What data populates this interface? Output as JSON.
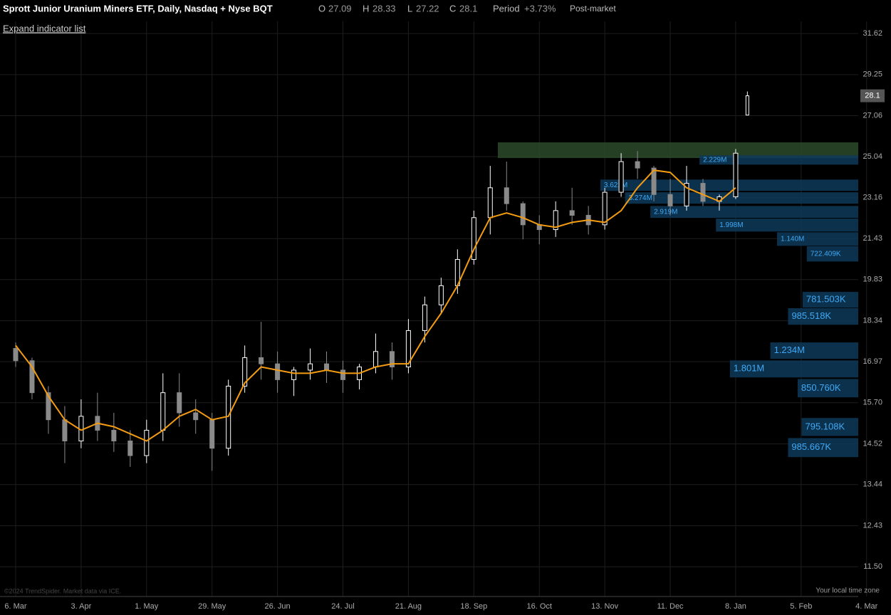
{
  "header": {
    "title": "Sprott Junior Uranium Miners ETF, Daily, Nasdaq + Nyse BQT",
    "ohlc": [
      {
        "label": "O",
        "value": 27.09
      },
      {
        "label": "H",
        "value": 28.33
      },
      {
        "label": "L",
        "value": 27.22
      },
      {
        "label": "C",
        "value": 28.1
      }
    ],
    "period": {
      "label": "Period",
      "value": 3.73,
      "value_label": "+3.73%"
    },
    "session": "Post-market",
    "expand": "Expand indicator list"
  },
  "chart_data": {
    "type": "candlestick",
    "log_scale": true,
    "grid": true,
    "xlim": [
      -6.7,
      358.9
    ],
    "ylim": [
      10.87,
      32.36
    ],
    "xticks": [
      {
        "value": 0,
        "label": "6. Mar"
      },
      {
        "value": 28,
        "label": "3. Apr"
      },
      {
        "value": 56,
        "label": "1. May"
      },
      {
        "value": 84,
        "label": "29. May"
      },
      {
        "value": 112,
        "label": "26. Jun"
      },
      {
        "value": 140,
        "label": "24. Jul"
      },
      {
        "value": 168,
        "label": "21. Aug"
      },
      {
        "value": 196,
        "label": "18. Sep"
      },
      {
        "value": 224,
        "label": "16. Oct"
      },
      {
        "value": 252,
        "label": "13. Nov"
      },
      {
        "value": 280,
        "label": "11. Dec"
      },
      {
        "value": 308,
        "label": "8. Jan"
      },
      {
        "value": 336,
        "label": "5. Feb"
      },
      {
        "value": 364,
        "label": "4. Mar"
      }
    ],
    "yticks": [
      31.62,
      29.25,
      27.06,
      25.04,
      23.16,
      21.43,
      19.83,
      18.34,
      16.97,
      {
        "value": 15.7,
        "label": "15.70"
      },
      14.52,
      13.44,
      12.43,
      {
        "value": 11.5,
        "label": "11.50"
      }
    ],
    "up_color": "#ffffff",
    "down_color": "#8a8a8a",
    "ma_color": "#f39c12",
    "x": [
      0,
      7,
      14,
      21,
      28,
      35,
      42,
      49,
      56,
      63,
      70,
      77,
      84,
      91,
      98,
      105,
      112,
      119,
      126,
      133,
      140,
      147,
      154,
      161,
      168,
      175,
      182,
      189,
      196,
      203,
      210,
      217,
      224,
      231,
      238,
      245,
      252,
      259,
      266,
      273,
      280,
      287,
      294,
      301,
      308
    ],
    "open": [
      17.4,
      17.0,
      16.0,
      15.2,
      14.6,
      15.3,
      14.9,
      14.6,
      14.2,
      14.9,
      16.0,
      15.4,
      15.2,
      14.4,
      16.2,
      17.1,
      16.9,
      16.4,
      16.7,
      16.9,
      16.7,
      16.4,
      16.8,
      17.3,
      16.8,
      18.0,
      18.9,
      19.6,
      20.6,
      22.3,
      23.6,
      22.9,
      22.0,
      21.8,
      22.6,
      22.4,
      22.0,
      23.4,
      24.8,
      24.5,
      23.3,
      22.8,
      23.8,
      23.0,
      23.2
    ],
    "high": [
      17.6,
      17.1,
      16.2,
      15.6,
      15.8,
      16.0,
      15.4,
      14.9,
      15.2,
      16.6,
      16.6,
      15.8,
      15.4,
      16.4,
      17.5,
      18.3,
      17.3,
      16.8,
      17.4,
      17.3,
      17.0,
      16.9,
      17.9,
      17.6,
      18.4,
      19.2,
      19.9,
      21.0,
      22.6,
      24.6,
      24.8,
      23.0,
      22.4,
      23.0,
      23.6,
      22.8,
      23.6,
      25.2,
      25.3,
      24.6,
      24.0,
      24.6,
      24.0,
      23.3,
      25.4
    ],
    "low": [
      16.8,
      15.8,
      14.8,
      14.0,
      14.4,
      14.6,
      14.3,
      13.9,
      14.0,
      14.6,
      15.0,
      14.8,
      13.8,
      14.2,
      16.0,
      16.4,
      16.0,
      15.9,
      16.4,
      16.3,
      16.0,
      16.1,
      16.6,
      16.4,
      16.6,
      17.6,
      18.6,
      19.3,
      20.4,
      21.6,
      22.6,
      21.4,
      21.2,
      21.5,
      22.0,
      21.6,
      21.8,
      23.2,
      24.0,
      23.0,
      22.4,
      22.6,
      22.8,
      22.6,
      23.1
    ],
    "close": [
      17.0,
      16.0,
      15.2,
      14.6,
      15.3,
      14.9,
      14.6,
      14.2,
      14.9,
      16.0,
      15.4,
      15.2,
      14.4,
      16.2,
      17.1,
      16.9,
      16.4,
      16.7,
      16.9,
      16.7,
      16.4,
      16.8,
      17.3,
      16.8,
      18.0,
      18.9,
      19.6,
      20.6,
      22.3,
      23.6,
      22.9,
      22.0,
      21.8,
      22.6,
      22.4,
      22.0,
      23.4,
      24.8,
      24.5,
      23.3,
      22.8,
      23.8,
      23.0,
      23.2,
      25.2
    ],
    "ma": [
      17.5,
      16.8,
      15.9,
      15.2,
      14.9,
      15.1,
      15.0,
      14.8,
      14.6,
      14.9,
      15.3,
      15.5,
      15.2,
      15.3,
      16.3,
      16.8,
      16.7,
      16.6,
      16.6,
      16.7,
      16.6,
      16.6,
      16.8,
      16.9,
      16.9,
      17.8,
      18.6,
      19.6,
      21.0,
      22.3,
      22.5,
      22.3,
      22.0,
      21.9,
      22.1,
      22.2,
      22.1,
      22.6,
      23.6,
      24.4,
      24.3,
      23.6,
      23.3,
      23.0,
      23.6
    ],
    "last_x": 313,
    "price_tag": {
      "value": 28.1,
      "label": "28.1"
    },
    "volume_profile": {
      "color": "#0e3a5a",
      "label_color": "#3fa9f5",
      "volumes": [
        2229000,
        3621000,
        3274000,
        2919000,
        1998000,
        1140000,
        722409,
        781503,
        985518,
        1234000,
        1801000,
        850760,
        795108,
        985667
      ],
      "value_labels": [
        "2.229M",
        "3.621M",
        "3.274M",
        "2.919M",
        "1.998M",
        "1.140M",
        "722.409K",
        "781.503K",
        "985.518K",
        "1.234M",
        "1.801M",
        "850.760K",
        "795.108K",
        "985.667K"
      ],
      "levels": [
        [
          24.66,
          25.1
        ],
        [
          23.46,
          23.97
        ],
        [
          22.9,
          23.4
        ],
        [
          22.29,
          22.8
        ],
        [
          21.72,
          22.26
        ],
        [
          21.14,
          21.69
        ],
        [
          20.52,
          21.12
        ],
        [
          18.8,
          19.37
        ],
        [
          18.2,
          18.78
        ],
        [
          17.06,
          17.6
        ],
        [
          16.47,
          17.01
        ],
        [
          15.86,
          16.42
        ],
        [
          14.74,
          15.25
        ],
        [
          14.16,
          14.68
        ]
      ]
    },
    "footer_left": "©2024 TrendSpider. Market data via ICE.",
    "footer_right": "Your local time zone"
  }
}
